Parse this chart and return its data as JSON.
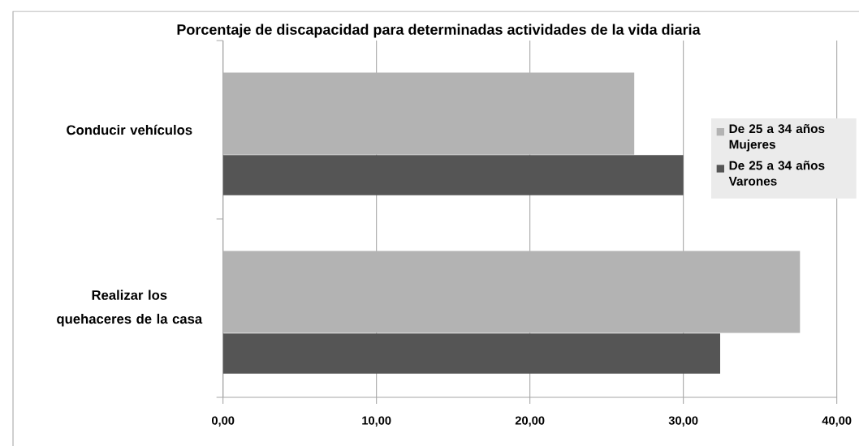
{
  "chart_data": {
    "type": "bar",
    "orientation": "horizontal",
    "title": "Porcentaje de discapacidad para determinadas actividades de la vida diaria",
    "categories": [
      "Conducir vehículos",
      "Realizar los quehaceres de la casa"
    ],
    "series": [
      {
        "name": "De 25 a 34 años Mujeres",
        "color": "#b3b3b3",
        "values": [
          26.8,
          37.6
        ]
      },
      {
        "name": "De 25 a 34 años Varones",
        "color": "#555555",
        "values": [
          30.0,
          32.4
        ]
      }
    ],
    "xlim": [
      0,
      40
    ],
    "xticks": [
      {
        "value": 0,
        "label": "0,00"
      },
      {
        "value": 10,
        "label": "10,00"
      },
      {
        "value": 20,
        "label": "20,00"
      },
      {
        "value": 30,
        "label": "30,00"
      },
      {
        "value": 40,
        "label": "40,00"
      }
    ],
    "grid": "x",
    "legend": "top right"
  }
}
